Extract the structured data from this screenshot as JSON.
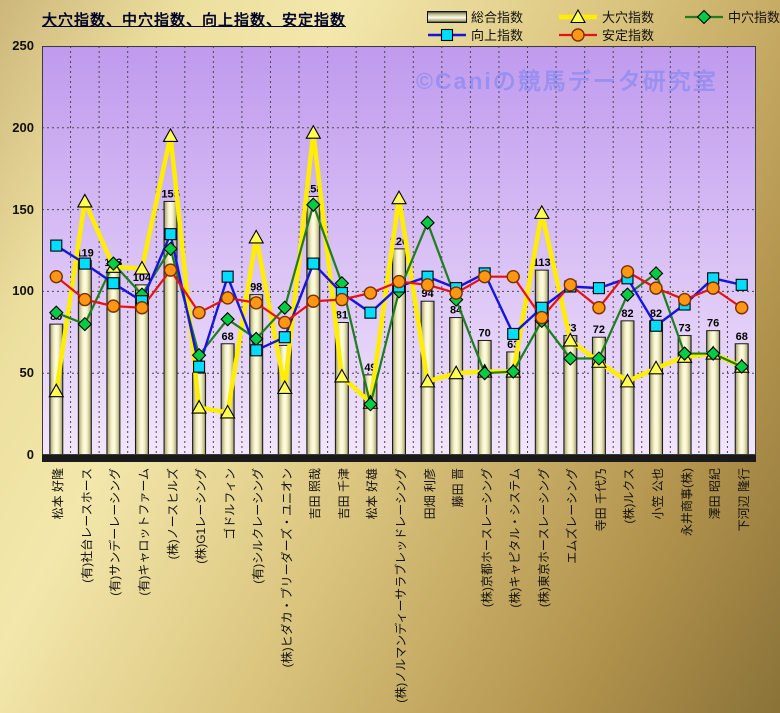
{
  "title": "大穴指数、中穴指数、向上指数、安定指数",
  "watermark": "©Caniの競馬データ研究室",
  "legend": {
    "items": [
      {
        "label": "総合指数",
        "swatch": "bar"
      },
      {
        "label": "大穴指数",
        "swatch": "triangle"
      },
      {
        "label": "中穴指数",
        "swatch": "diamond"
      },
      {
        "label": "向上指数",
        "swatch": "square"
      },
      {
        "label": "安定指数",
        "swatch": "circle"
      }
    ]
  },
  "y_axis": {
    "ticks": [
      250,
      200,
      150,
      100,
      50,
      0
    ]
  },
  "colors": {
    "plot_bg_top": "#c09aee",
    "plot_bg_bottom": "#f2e6fc",
    "grid": "#4a4a4a",
    "axis_base": "#1a1a1a",
    "bar_edge": "#55553a",
    "bar_mid": "#b9b68a",
    "bar_light": "#fffce8",
    "bar_stroke": "#1a1a1a"
  },
  "chart_data": {
    "type": "bar",
    "subtype": "bar-line-combo",
    "title": "大穴指数、中穴指数、向上指数、安定指数",
    "xlabel": "",
    "ylabel": "",
    "ylim": [
      0,
      250
    ],
    "grid": true,
    "legend_position": "top",
    "bar_labels": true,
    "categories": [
      "松本 好隆",
      "(有)社台レースホース",
      "(有)サンデーレーシング",
      "(有)キャロットファーム",
      "(株)ノースヒルズ",
      "(株)G1レーシング",
      "ゴドルフィン",
      "(有)シルクレーシング",
      "(株)ヒダカ・ブリーダーズ・ユニオン",
      "吉田 照哉",
      "吉田 千津",
      "松本 好雄",
      "(株)ノルマンディーサラブレッドレーシング",
      "田畑 利彦",
      "藤田 晋",
      "(株)京都ホースレーシング",
      "(株)キャピタル・システム",
      "(株)東京ホースレーシング",
      "エムズレーシング",
      "寺田 千代乃",
      "(株)ルクス",
      "小笠 公也",
      "永井商事(株)",
      "澤田 昭紀",
      "下河辺 隆行"
    ],
    "series": [
      {
        "name": "総合指数",
        "type": "bar",
        "values": [
          80,
          119,
          113,
          104,
          155,
          50,
          68,
          98,
          67,
          158,
          81,
          49,
          126,
          94,
          84,
          70,
          63,
          113,
          73,
          72,
          82,
          82,
          73,
          76,
          68
        ]
      },
      {
        "name": "大穴指数",
        "type": "line",
        "marker": "triangle",
        "line_color": "#ffee00",
        "marker_color": "#ffff55",
        "marker_stroke": "#000000",
        "line_width": 4.5,
        "values": [
          39,
          155,
          115,
          114,
          195,
          29,
          26,
          133,
          41,
          197,
          48,
          32,
          157,
          45,
          50,
          51,
          51,
          148,
          70,
          57,
          45,
          53,
          60,
          62,
          54
        ]
      },
      {
        "name": "中穴指数",
        "type": "line",
        "marker": "diamond",
        "line_color": "#1e7d1e",
        "marker_color": "#00cc44",
        "marker_stroke": "#000000",
        "line_width": 2.2,
        "values": [
          87,
          80,
          117,
          98,
          126,
          61,
          83,
          71,
          90,
          153,
          105,
          31,
          100,
          142,
          95,
          50,
          51,
          82,
          59,
          59,
          98,
          111,
          62,
          62,
          54
        ]
      },
      {
        "name": "向上指数",
        "type": "line",
        "marker": "square",
        "line_color": "#1515dd",
        "marker_color": "#00ddff",
        "marker_stroke": "#000000",
        "line_width": 2.4,
        "values": [
          128,
          117,
          105,
          94,
          135,
          54,
          109,
          64,
          72,
          117,
          99,
          87,
          103,
          109,
          102,
          111,
          74,
          90,
          103,
          102,
          108,
          79,
          92,
          108,
          104
        ]
      },
      {
        "name": "安定指数",
        "type": "line",
        "marker": "circle",
        "line_color": "#e81010",
        "marker_color": "#ff9614",
        "marker_stroke": "#7a3000",
        "line_width": 2.2,
        "values": [
          109,
          95,
          91,
          90,
          113,
          87,
          96,
          93,
          81,
          94,
          95,
          99,
          106,
          104,
          99,
          109,
          109,
          84,
          104,
          90,
          112,
          102,
          95,
          102,
          90
        ]
      }
    ]
  }
}
